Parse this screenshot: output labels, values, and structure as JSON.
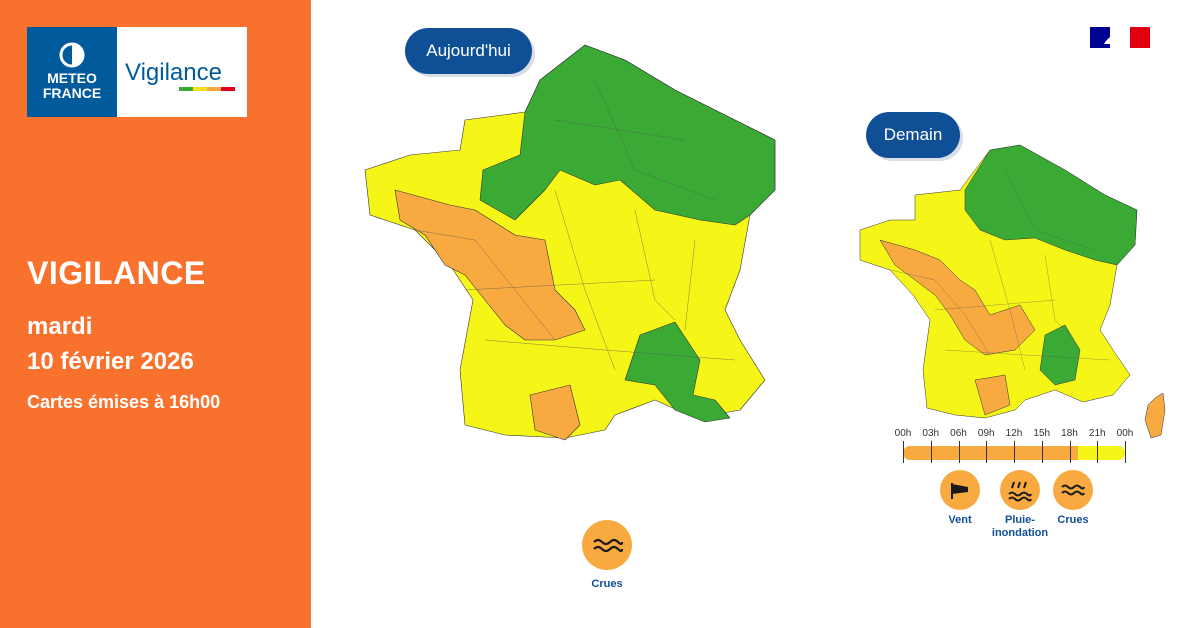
{
  "colors": {
    "orange_panel": "#F9722D",
    "meteo_blue": "#005A9B",
    "green": "#3AAA35",
    "yellow": "#F5F518",
    "orange": "#F8A940",
    "red": "#E2001A"
  },
  "logo": {
    "brand_line1": "METEO",
    "brand_line2": "FRANCE",
    "product": "Vigilance",
    "icon": "meteo-france-logo-icon"
  },
  "left": {
    "title": "VIGILANCE",
    "day": "mardi",
    "date": "10 février 2026",
    "issued": "Cartes émises à 16h00"
  },
  "today": {
    "label": "Aujourd'hui",
    "hazards": [
      {
        "label": "Crues",
        "icon": "flood-waves-icon",
        "level": "orange"
      }
    ]
  },
  "tomorrow": {
    "label": "Demain",
    "timeline": {
      "ticks": [
        "00h",
        "03h",
        "06h",
        "09h",
        "12h",
        "15h",
        "18h",
        "21h",
        "00h"
      ],
      "orange_until_hour": 18
    },
    "hazards": [
      {
        "label": "Vent",
        "icon": "wind-icon",
        "level": "orange"
      },
      {
        "label": "Pluie-\ninondation",
        "label_line1": "Pluie-",
        "label_line2": "inondation",
        "icon": "rain-flood-icon",
        "level": "orange"
      },
      {
        "label": "Crues",
        "icon": "flood-waves-icon",
        "level": "orange"
      }
    ]
  },
  "flag_icon": "french-republic-flag-icon"
}
